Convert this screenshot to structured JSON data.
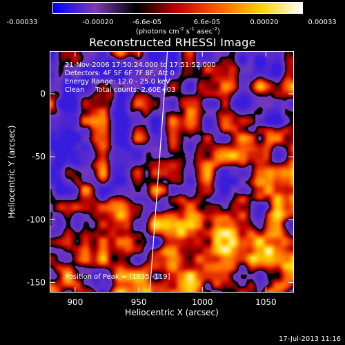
{
  "colorbar": {
    "ticks": [
      "-0.00033",
      "-0.00020",
      "-6.6e-05",
      "6.6e-05",
      "0.00020",
      "0.00033"
    ],
    "unit_prefix": "(photons cm",
    "unit_exp1": "-2",
    "unit_mid": " s",
    "unit_exp2": "-1",
    "unit_mid2": " asec",
    "unit_exp3": "-2",
    "unit_suffix": ")",
    "colors": [
      "#0000ff",
      "#7a3cb8",
      "#000000",
      "#c00000",
      "#ff6000",
      "#ffd000",
      "#ffffff"
    ]
  },
  "title": "Reconstructed RHESSI Image",
  "info": {
    "line1": "21-Nov-2006 17:50:24.000 to 17:51:52.000",
    "line2": "Detectors: 4F 5F 6F 7F 8F, Att 0",
    "line3": "Energy Range: 12.0 - 25.0 keV",
    "line4": "Clean     Total counts: 2.60E+03",
    "peak": "Position of Peak = [1035,-119]"
  },
  "timestamp": "17-Jul-2013 11:16",
  "chart_data": {
    "type": "heatmap",
    "xlabel": "Heliocentric X (arcsec)",
    "ylabel": "Heliocentric Y (arcsec)",
    "xlim": [
      880,
      1072
    ],
    "ylim": [
      -158,
      34
    ],
    "xticks": [
      900,
      950,
      1000,
      1050
    ],
    "yticks": [
      0,
      -50,
      -100,
      -150
    ],
    "peak": [
      1035,
      -119
    ],
    "limb_line": [
      [
        958,
        -158
      ],
      [
        972,
        34
      ]
    ]
  }
}
